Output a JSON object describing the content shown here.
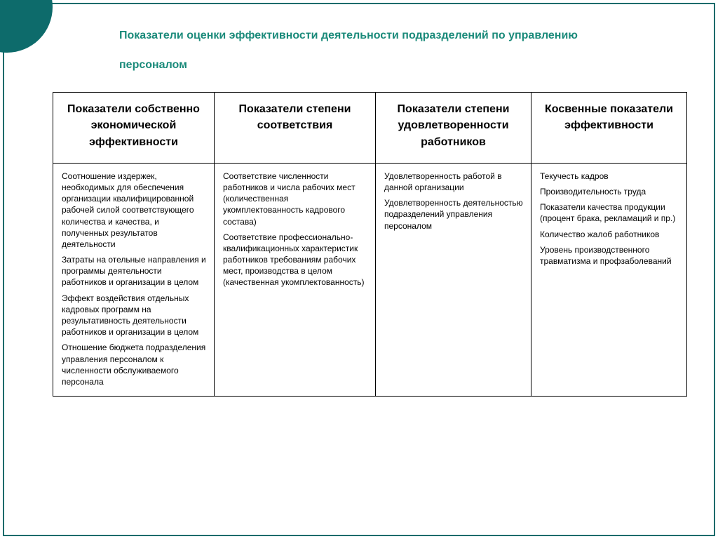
{
  "title_line1": "Показатели оценки эффективности деятельности подразделений по управлению",
  "title_line2": "персоналом",
  "table": {
    "headers": [
      "Показатели собственно экономической эффективности",
      "Показатели степени соответствия",
      "Показатели степени удовлетворенности работников",
      "Косвенные показатели эффективности"
    ],
    "cells": [
      [
        "Соотношение издержек, необходимых для обеспечения организации квалифицированной рабочей силой соответствующего количества и качества, и полученных результатов деятельности",
        "Затраты на отельные направления и программы деятельности работников и организации в целом",
        "Эффект воздействия отдельных кадровых программ на результативность деятельности работников и организации в целом",
        "Отношение бюджета подразделения управления персоналом к численности обслуживаемого персонала"
      ],
      [
        "Соответствие численности работников и числа рабочих мест (количественная укомплектованность кадрового состава)",
        "Соответствие профессионально-квалификационных характеристик работников требованиям рабочих мест, производства в целом (качественная укомплектованность)"
      ],
      [
        "Удовлетворенность работой в данной организации",
        "Удовлетворенность деятельностью подразделений управления персоналом"
      ],
      [
        "Текучесть кадров",
        "Производительность труда",
        "Показатели качества продукции (процент брака, рекламаций и пр.)",
        "Количество жалоб работников",
        "Уровень производственного травматизма и профзаболеваний"
      ]
    ]
  },
  "colors": {
    "accent": "#0d6b6b",
    "title": "#1a8a7a",
    "border": "#000000",
    "background": "#ffffff"
  }
}
